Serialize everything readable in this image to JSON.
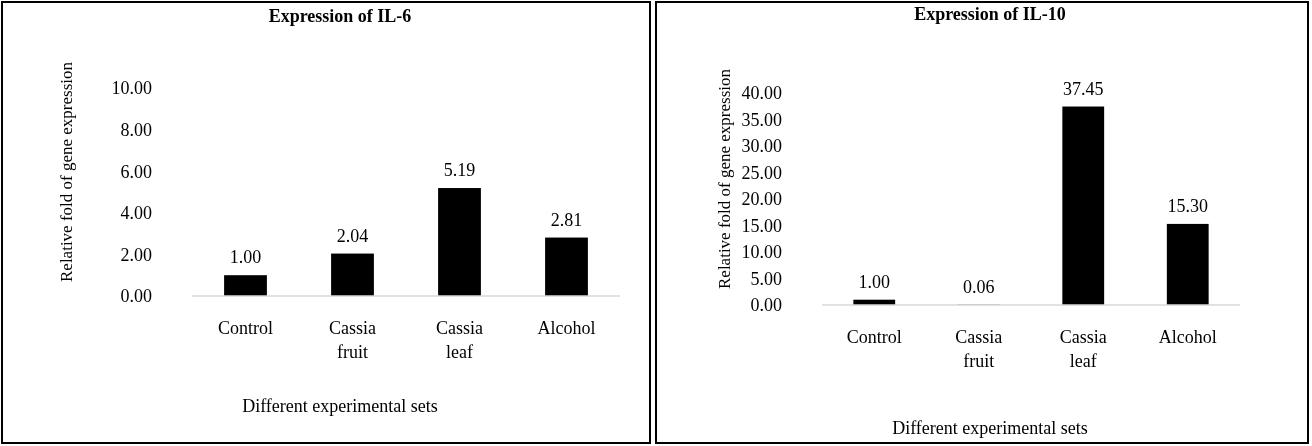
{
  "chart_data": [
    {
      "type": "bar",
      "title": "Expression of IL-6",
      "xlabel": "Different experimental sets",
      "ylabel": "Relative fold of gene expression",
      "categories": [
        "Control",
        "Cassia fruit",
        "Cassia leaf",
        "Alcohol"
      ],
      "values": [
        1.0,
        2.04,
        5.19,
        2.81
      ],
      "value_labels": [
        "1.00",
        "2.04",
        "5.19",
        "2.81"
      ],
      "color": "#000000",
      "ylim": [
        0,
        10
      ],
      "yticks": [
        {
          "value": 0,
          "label": "0.00"
        },
        {
          "value": 2,
          "label": "2.00"
        },
        {
          "value": 4,
          "label": "4.00"
        },
        {
          "value": 6,
          "label": "6.00"
        },
        {
          "value": 8,
          "label": "8.00"
        },
        {
          "value": 10,
          "label": "10.00"
        }
      ]
    },
    {
      "type": "bar",
      "title": "Expression of IL-10",
      "xlabel": "Different experimental sets",
      "ylabel": "Relative fold of gene expression",
      "categories": [
        "Control",
        "Cassia fruit",
        "Cassia leaf",
        "Alcohol"
      ],
      "values": [
        1.0,
        0.06,
        37.45,
        15.3
      ],
      "value_labels": [
        "1.00",
        "0.06",
        "37.45",
        "15.30"
      ],
      "color": "#000000",
      "ylim": [
        0,
        40
      ],
      "yticks": [
        {
          "value": 0,
          "label": "0.00"
        },
        {
          "value": 5,
          "label": "5.00"
        },
        {
          "value": 10,
          "label": "10.00"
        },
        {
          "value": 15,
          "label": "15.00"
        },
        {
          "value": 20,
          "label": "20.00"
        },
        {
          "value": 25,
          "label": "25.00"
        },
        {
          "value": 30,
          "label": "30.00"
        },
        {
          "value": 35,
          "label": "35.00"
        },
        {
          "value": 40,
          "label": "40.00"
        }
      ]
    }
  ]
}
